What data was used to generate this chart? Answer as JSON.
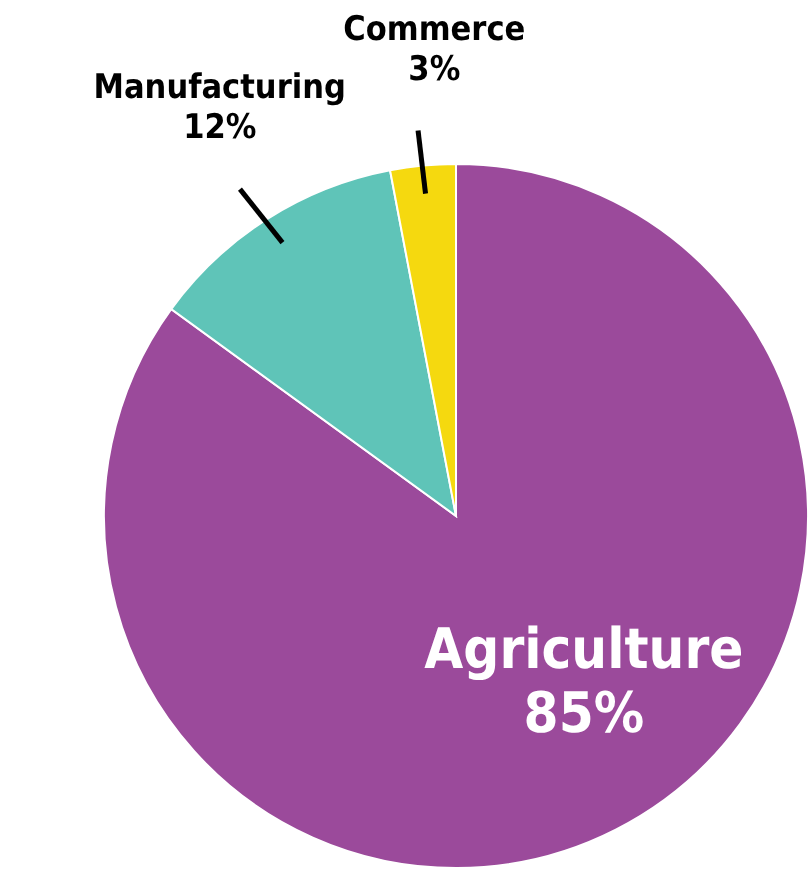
{
  "chart_data": {
    "type": "pie",
    "categories": [
      "Agriculture",
      "Manufacturing",
      "Commerce"
    ],
    "values": [
      85,
      12,
      3
    ],
    "colors": [
      "#9b4a9b",
      "#5fc4b8",
      "#f5d90f"
    ],
    "value_labels": [
      "85%",
      "12%",
      "3%"
    ]
  }
}
